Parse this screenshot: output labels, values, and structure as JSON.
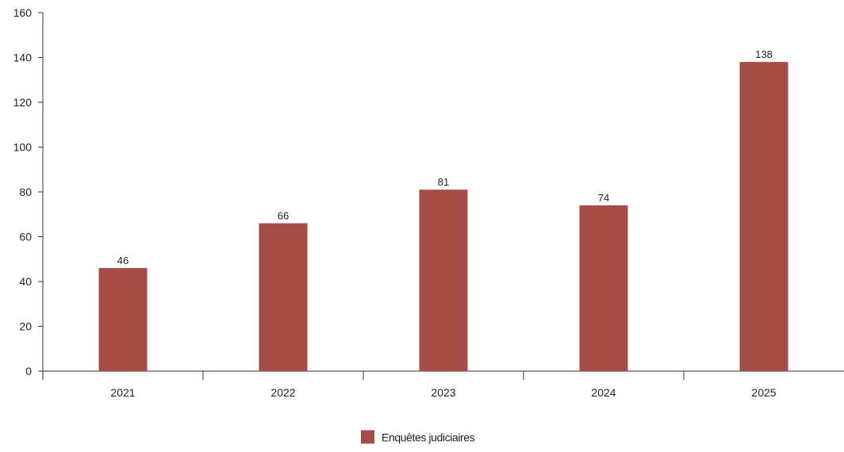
{
  "chart_data": {
    "type": "bar",
    "categories": [
      "2021",
      "2022",
      "2023",
      "2024",
      "2025"
    ],
    "series": [
      {
        "name": "Enquêtes judiciaires",
        "values": [
          46,
          66,
          81,
          74,
          138
        ],
        "color": "#a54c47"
      }
    ],
    "data_labels": [
      "46",
      "66",
      "81",
      "74",
      "138"
    ],
    "yticks": [
      0,
      20,
      40,
      60,
      80,
      100,
      120,
      140,
      160
    ],
    "ylim": [
      0,
      160
    ],
    "grid": false,
    "legend_position": "bottom"
  },
  "legend": {
    "label": "Enquêtes judiciaires",
    "color": "#a54c47"
  }
}
